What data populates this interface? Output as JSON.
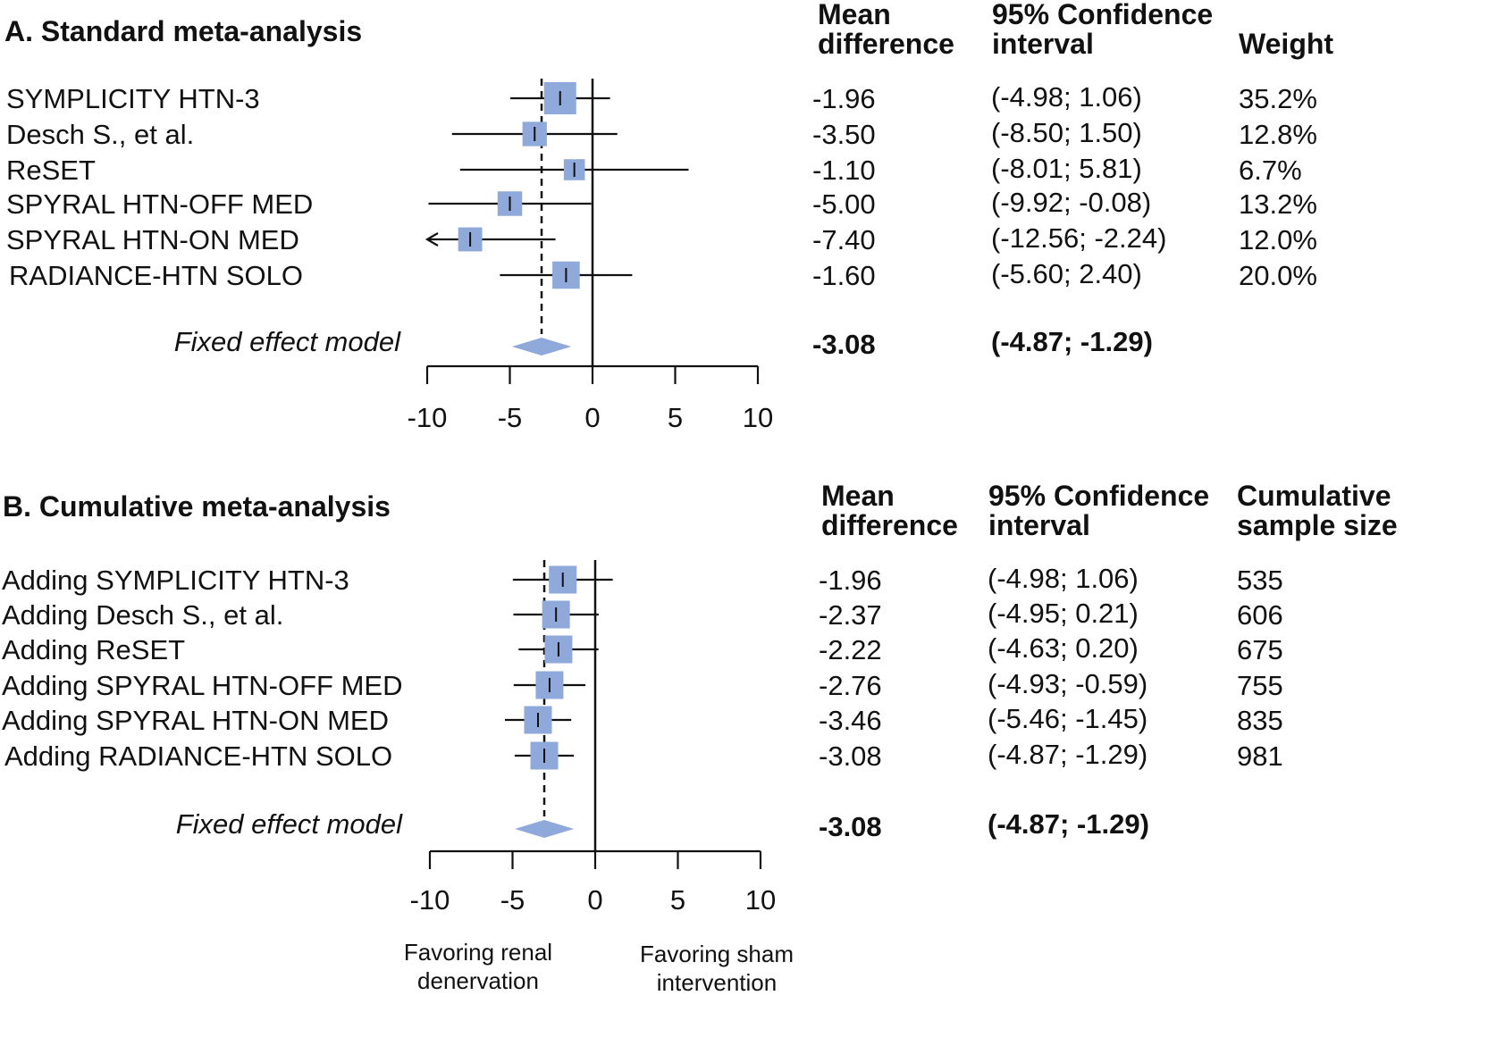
{
  "chart_data": [
    {
      "type": "forest",
      "title": "A. Standard meta-analysis",
      "headers": {
        "md": [
          "Mean",
          "difference"
        ],
        "ci": [
          "95% Confidence",
          "interval"
        ],
        "extra": [
          "Weight"
        ]
      },
      "rows": [
        {
          "label": "SYMPLICITY HTN-3",
          "md": -1.96,
          "lo": -4.98,
          "hi": 1.06,
          "md_text": "-1.96",
          "ci_text": "(-4.98;  1.06)",
          "extra": "35.2%"
        },
        {
          "label": "Desch S., et al.",
          "md": -3.5,
          "lo": -8.5,
          "hi": 1.5,
          "md_text": "-3.50",
          "ci_text": "(-8.50;  1.50)",
          "extra": "12.8%"
        },
        {
          "label": "ReSET",
          "md": -1.1,
          "lo": -8.01,
          "hi": 5.81,
          "md_text": "-1.10",
          "ci_text": "(-8.01;  5.81)",
          "extra": "6.7%"
        },
        {
          "label": "SPYRAL  HTN-OFF MED",
          "md": -5.0,
          "lo": -9.92,
          "hi": -0.08,
          "md_text": "-5.00",
          "ci_text": "(-9.92; -0.08)",
          "extra": "13.2%"
        },
        {
          "label": "SPYRAL  HTN-ON MED",
          "md": -7.4,
          "lo": -12.56,
          "hi": -2.24,
          "md_text": "-7.40",
          "ci_text": "(-12.56; -2.24)",
          "extra": "12.0%"
        },
        {
          "label": "RADIANCE-HTN SOLO",
          "md": -1.6,
          "lo": -5.6,
          "hi": 2.4,
          "md_text": "-1.60",
          "ci_text": "(-5.60;  2.40)",
          "extra": "20.0%"
        }
      ],
      "summary": {
        "label": "Fixed effect model",
        "md": -3.08,
        "lo": -4.87,
        "hi": -1.29,
        "md_text": "-3.08",
        "ci_text": "(-4.87; -1.29)"
      },
      "xlim": [
        -10,
        10
      ],
      "ticks": [
        -10,
        -5,
        0,
        5,
        10
      ],
      "tick_labels": [
        "-10",
        "-5",
        "0",
        "5",
        "10"
      ]
    },
    {
      "type": "forest",
      "title": "B. Cumulative meta-analysis",
      "headers": {
        "md": [
          "Mean",
          "difference"
        ],
        "ci": [
          "95% Confidence",
          "interval"
        ],
        "extra": [
          "Cumulative",
          "sample size"
        ]
      },
      "rows": [
        {
          "label": "Adding SYMPLICITY HTN-3",
          "md": -1.96,
          "lo": -4.98,
          "hi": 1.06,
          "md_text": "-1.96",
          "ci_text": "(-4.98;  1.06)",
          "extra": "535"
        },
        {
          "label": "Adding Desch S., et al.",
          "md": -2.37,
          "lo": -4.95,
          "hi": 0.21,
          "md_text": "-2.37",
          "ci_text": "(-4.95;  0.21)",
          "extra": "606"
        },
        {
          "label": "Adding ReSET",
          "md": -2.22,
          "lo": -4.63,
          "hi": 0.2,
          "md_text": "-2.22",
          "ci_text": "(-4.63;  0.20)",
          "extra": "675"
        },
        {
          "label": "Adding SPYRAL  HTN-OFF MED",
          "md": -2.76,
          "lo": -4.93,
          "hi": -0.59,
          "md_text": "-2.76",
          "ci_text": "(-4.93; -0.59)",
          "extra": "755"
        },
        {
          "label": "Adding SPYRAL  HTN-ON MED",
          "md": -3.46,
          "lo": -5.46,
          "hi": -1.45,
          "md_text": "-3.46",
          "ci_text": "(-5.46; -1.45)",
          "extra": "835"
        },
        {
          "label": "Adding RADIANCE-HTN  SOLO",
          "md": -3.08,
          "lo": -4.87,
          "hi": -1.29,
          "md_text": "-3.08",
          "ci_text": "(-4.87; -1.29)",
          "extra": "981"
        }
      ],
      "summary": {
        "label": "Fixed effect model",
        "md": -3.08,
        "lo": -4.87,
        "hi": -1.29,
        "md_text": "-3.08",
        "ci_text": "(-4.87; -1.29)"
      },
      "xlim": [
        -10,
        10
      ],
      "ticks": [
        -10,
        -5,
        0,
        5,
        10
      ],
      "tick_labels": [
        "-10",
        "-5",
        "0",
        "5",
        "10"
      ],
      "favoring_left": [
        "Favoring renal",
        "denervation"
      ],
      "favoring_right": [
        "Favoring sham",
        "intervention"
      ]
    }
  ],
  "colors": {
    "marker": "#8fa9db",
    "line": "#111111"
  }
}
